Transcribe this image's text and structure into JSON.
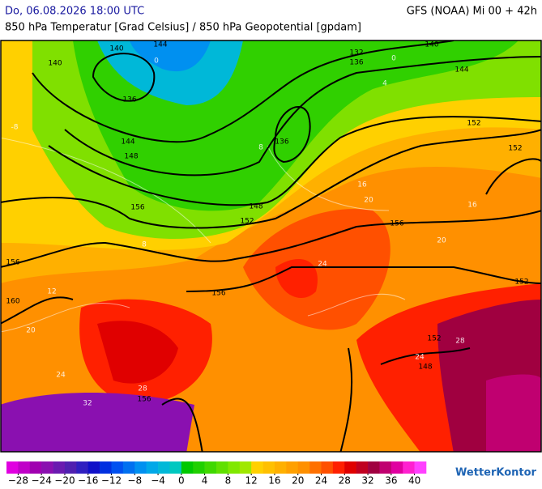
{
  "header": {
    "left": "Do, 06.08.2026 18:00 UTC",
    "right": "GFS (NOAA) Mi 00 + 42h",
    "subtitle": "850 hPa Temperatur [Grad Celsius] / 850 hPa Geopotential [gpdam]"
  },
  "map": {
    "geopotential_labels": [
      140,
      144,
      140,
      136,
      132,
      136,
      140,
      144,
      136,
      144,
      148,
      152,
      148,
      152,
      156,
      156,
      156,
      160,
      152,
      156,
      152,
      148,
      156,
      152
    ],
    "temperature_labels": [
      -8,
      0,
      0,
      4,
      8,
      8,
      12,
      16,
      16,
      20,
      20,
      24,
      24,
      24,
      28,
      28,
      32,
      20
    ]
  },
  "colorbar": {
    "range": [
      -30,
      42
    ],
    "colors": [
      "#e000e0",
      "#c000c8",
      "#a000b0",
      "#8a10b0",
      "#6a1ab0",
      "#5020b0",
      "#3020c0",
      "#1010c8",
      "#0030e0",
      "#0050f0",
      "#0070f0",
      "#0090f0",
      "#00a8e8",
      "#00b8d8",
      "#00c8c0",
      "#00c800",
      "#20d000",
      "#40d800",
      "#60e000",
      "#80e800",
      "#a0e800",
      "#ffd000",
      "#ffc000",
      "#ffb000",
      "#ffa000",
      "#ff9000",
      "#ff7000",
      "#ff5000",
      "#ff2000",
      "#e00000",
      "#c00020",
      "#a00040",
      "#c00070",
      "#e000a0",
      "#ff20d0",
      "#ff40ff"
    ],
    "ticks": [
      {
        "value": -28,
        "label": "−28"
      },
      {
        "value": -24,
        "label": "−24"
      },
      {
        "value": -20,
        "label": "−20"
      },
      {
        "value": -16,
        "label": "−16"
      },
      {
        "value": -12,
        "label": "−12"
      },
      {
        "value": -8,
        "label": "−8"
      },
      {
        "value": -4,
        "label": "−4"
      },
      0,
      4,
      8,
      12,
      16,
      20,
      24,
      28,
      32,
      36,
      40
    ]
  },
  "logo": "WetterKontor"
}
